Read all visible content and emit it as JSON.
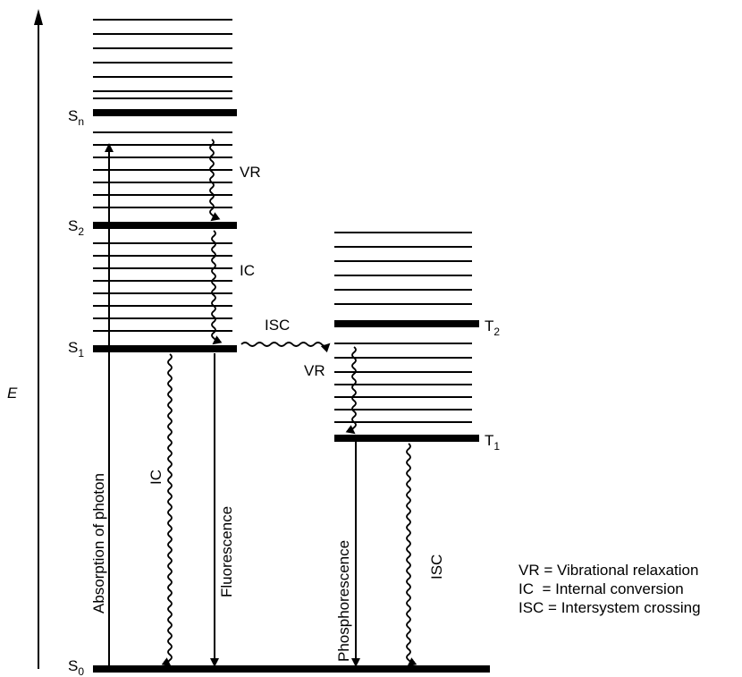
{
  "axis": {
    "label": "E"
  },
  "states": {
    "S0": {
      "base": "S",
      "sub": "0"
    },
    "S1": {
      "base": "S",
      "sub": "1"
    },
    "S2": {
      "base": "S",
      "sub": "2"
    },
    "Sn": {
      "base": "S",
      "sub": "n"
    },
    "T1": {
      "base": "T",
      "sub": "1"
    },
    "T2": {
      "base": "T",
      "sub": "2"
    }
  },
  "transitions": {
    "absorption": "Absorption of photon",
    "ic_vertical": "IC",
    "fluorescence": "Fluorescence",
    "phosphorescence": "Phosphorescence",
    "isc_vertical": "ISC",
    "vr_upper": "VR",
    "ic_upper": "IC",
    "isc_horizontal": "ISC",
    "vr_triplet": "VR"
  },
  "legend": [
    {
      "abbr": "VR",
      "text": "VR = Vibrational relaxation"
    },
    {
      "abbr": "IC",
      "text": "IC  = Internal conversion"
    },
    {
      "abbr": "ISC",
      "text": "ISC = Intersystem crossing"
    }
  ]
}
